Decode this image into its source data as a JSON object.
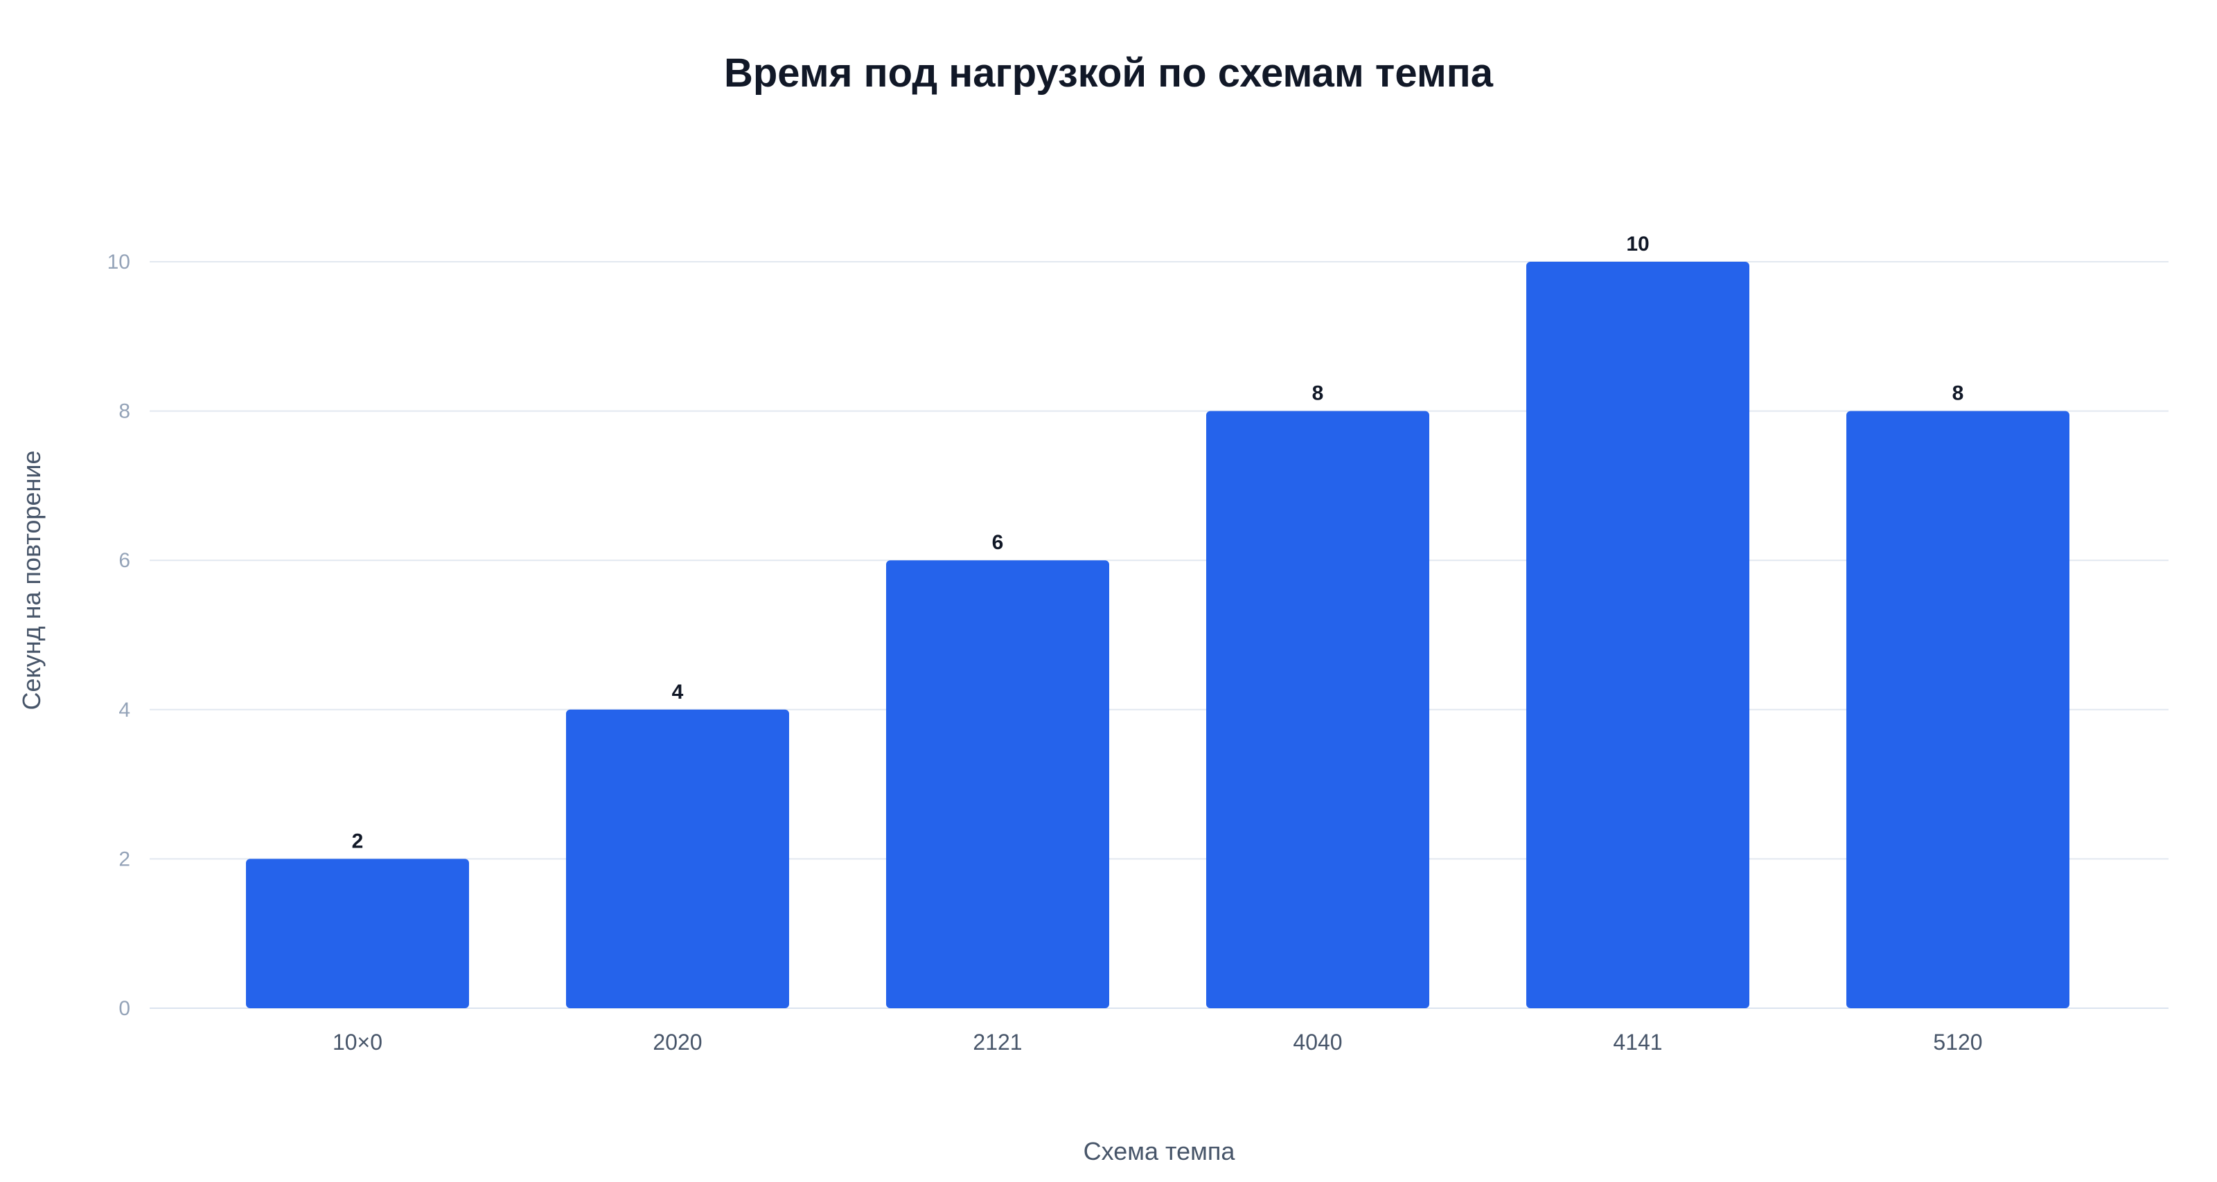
{
  "chart_data": {
    "type": "bar",
    "title": "Время под нагрузкой по схемам темпа",
    "xlabel": "Схема темпа",
    "ylabel": "Секунд на повторение",
    "categories": [
      "10×0",
      "2020",
      "2121",
      "4040",
      "4141",
      "5120"
    ],
    "values": [
      2,
      4,
      6,
      8,
      10,
      8
    ],
    "ylim": [
      0,
      10
    ],
    "yticks": [
      0,
      2,
      4,
      6,
      8,
      10
    ],
    "grid": true,
    "data_labels": true,
    "bar_color": "#2563eb"
  }
}
